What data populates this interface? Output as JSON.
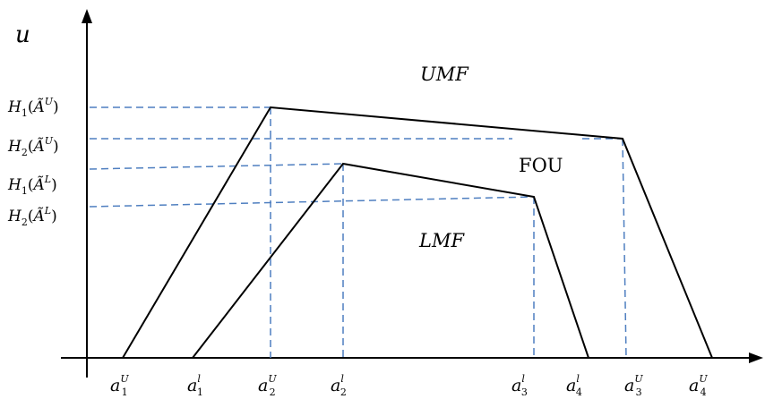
{
  "axis": {
    "y_label": "u"
  },
  "region_labels": {
    "umf": "UMF",
    "fou": "FOU",
    "lmf": "LMF"
  },
  "y_ticks": [
    {
      "fn": "H",
      "sub": "1",
      "arg": "Ã",
      "sup": "U"
    },
    {
      "fn": "H",
      "sub": "2",
      "arg": "Ã",
      "sup": "U"
    },
    {
      "fn": "H",
      "sub": "1",
      "arg": "Ã",
      "sup": "L"
    },
    {
      "fn": "H",
      "sub": "2",
      "arg": "Ã",
      "sup": "L"
    }
  ],
  "x_ticks": [
    {
      "base": "a",
      "sub": "1",
      "sup": "U"
    },
    {
      "base": "a",
      "sub": "1",
      "sup": "l"
    },
    {
      "base": "a",
      "sub": "2",
      "sup": "U"
    },
    {
      "base": "a",
      "sub": "2",
      "sup": "l"
    },
    {
      "base": "a",
      "sub": "3",
      "sup": "l"
    },
    {
      "base": "a",
      "sub": "4",
      "sup": "l"
    },
    {
      "base": "a",
      "sub": "3",
      "sup": "U"
    },
    {
      "base": "a",
      "sub": "4",
      "sup": "U"
    }
  ],
  "colors": {
    "curve": "#000000",
    "axis": "#000000",
    "guide": "#4f7fc0"
  }
}
